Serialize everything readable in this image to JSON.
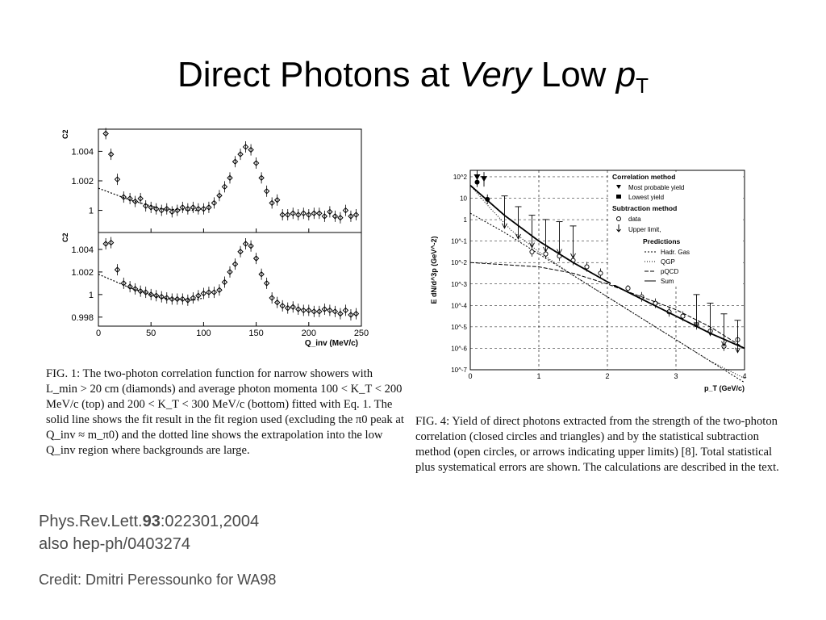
{
  "slide": {
    "title_part1": "Direct Photons at ",
    "title_italic": "Very",
    "title_part2": " Low ",
    "title_p": "p",
    "title_sub": "T"
  },
  "fig1": {
    "caption": "FIG. 1: The two-photon correlation function for narrow showers with L_min > 20 cm (diamonds) and average photon momenta 100 < K_T < 200 MeV/c (top) and 200 < K_T < 300 MeV/c (bottom) fitted with Eq. 1. The solid line shows the fit result in the fit region used (excluding the π0 peak at Q_inv ≈ m_π0) and the dotted line shows the extrapolation into the low Q_inv region where backgrounds are large."
  },
  "fig4": {
    "caption": "FIG. 4: Yield of direct photons extracted from the strength of the two-photon correlation (closed circles and triangles) and by the statistical subtraction method (open circles, or arrows indicating upper limits) [8]. Total statistical plus systematical errors are shown. The calculations are described in the text."
  },
  "reference": {
    "line1_a": "Phys.Rev.Lett.",
    "line1_b": "93",
    "line1_c": ":022301,2004",
    "line2": "also hep-ph/0403274"
  },
  "credit": "Credit: Dmitri Peressounko for WA98",
  "chart_data": [
    {
      "type": "scatter",
      "title": "",
      "xlabel": "Q_inv (MeV/c)",
      "x_ticks": [
        "0",
        "50",
        "100",
        "150",
        "200",
        "250"
      ],
      "xlim": [
        0,
        250
      ],
      "panels": [
        {
          "ylabel": "C2",
          "y_ticks": [
            "1.004",
            "1.002",
            "1"
          ],
          "ylim": [
            0.9985,
            1.0055
          ],
          "series": [
            {
              "x": [
                7,
                12,
                18,
                24,
                30,
                35,
                40,
                45,
                50,
                55,
                60,
                65,
                70,
                75,
                80,
                85,
                90,
                95,
                100,
                105,
                110,
                115,
                120,
                125,
                130,
                135,
                140,
                145,
                150,
                155,
                160,
                165,
                170,
                175,
                180,
                185,
                190,
                195,
                200,
                205,
                210,
                215,
                220,
                225,
                230,
                235,
                240,
                245
              ],
              "y": [
                1.0052,
                1.0038,
                1.0021,
                1.0009,
                1.0008,
                1.0006,
                1.0008,
                1.0003,
                1.0002,
                1.0001,
                1.0,
                1.0001,
                0.9999,
                1.0,
                1.0002,
                1.0001,
                1.0002,
                1.0001,
                1.0001,
                1.0002,
                1.0005,
                1.001,
                1.0016,
                1.0022,
                1.0033,
                1.0038,
                1.0043,
                1.0041,
                1.0032,
                1.0022,
                1.0013,
                1.0005,
                1.0007,
                0.9997,
                0.9997,
                0.9998,
                0.9997,
                0.9998,
                0.9997,
                0.9998,
                0.9998,
                0.9996,
                0.9999,
                0.9996,
                0.9995,
                1.0,
                0.9996,
                0.9997
              ]
            }
          ],
          "fit": {
            "x": [
              0,
              30,
              60,
              90,
              95
            ],
            "y": [
              1.0015,
              1.0007,
              1.0001,
              1.0,
              1.0
            ]
          }
        },
        {
          "ylabel": "C2",
          "y_ticks": [
            "1.004",
            "1.002",
            "1",
            "0.998"
          ],
          "ylim": [
            0.9972,
            1.0055
          ],
          "series": [
            {
              "x": [
                7,
                12,
                18,
                24,
                30,
                35,
                40,
                45,
                50,
                55,
                60,
                65,
                70,
                75,
                80,
                85,
                90,
                95,
                100,
                105,
                110,
                115,
                120,
                125,
                130,
                135,
                140,
                145,
                150,
                155,
                160,
                165,
                170,
                175,
                180,
                185,
                190,
                195,
                200,
                205,
                210,
                215,
                220,
                225,
                230,
                235,
                240,
                245
              ],
              "y": [
                1.0045,
                1.0046,
                1.0022,
                1.001,
                1.0007,
                1.0005,
                1.0003,
                1.0002,
                1.0,
                0.9999,
                0.9998,
                0.9997,
                0.9996,
                0.9996,
                0.9996,
                0.9995,
                0.9997,
                0.9999,
                1.0001,
                1.0002,
                1.0002,
                1.0004,
                1.0011,
                1.002,
                1.0027,
                1.0038,
                1.0045,
                1.0043,
                1.0032,
                1.0018,
                1.001,
                0.9997,
                0.9993,
                0.999,
                0.9988,
                0.9989,
                0.9987,
                0.9986,
                0.9986,
                0.9985,
                0.9985,
                0.9987,
                0.9986,
                0.9985,
                0.9983,
                0.9986,
                0.9982,
                0.9983
              ]
            }
          ],
          "fit": {
            "x": [
              0,
              30,
              60,
              90,
              100
            ],
            "y": [
              1.0018,
              1.0006,
              0.9997,
              0.9995,
              0.9997
            ]
          }
        }
      ]
    },
    {
      "type": "line",
      "title": "",
      "xlabel": "p_T (GeV/c)",
      "ylabel": "E dN/d^3p (GeV^-2)",
      "x_ticks": [
        "0",
        "1",
        "2",
        "3",
        "4"
      ],
      "y_ticks": [
        "10^2",
        "10",
        "1",
        "10^-1",
        "10^-2",
        "10^-3",
        "10^-4",
        "10^-5",
        "10^-6",
        "10^-7"
      ],
      "xlim": [
        0,
        4
      ],
      "ylim_log10": [
        -7,
        2.3
      ],
      "log_y": true,
      "legend": {
        "header1": "Correlation method",
        "item1": "Most probable yield",
        "item2": "Lowest yield",
        "header2": "Subtraction method",
        "item3": "data",
        "item4": "Upper limit,",
        "header3": "Predictions",
        "item5": "Hadr. Gas",
        "item6": "QGP",
        "item7": "pQCD",
        "item8": "Sum",
        "placement": "top-right"
      },
      "series": [
        {
          "name": "Most probable yield",
          "x": [
            0.1,
            0.2
          ],
          "y": [
            2.0,
            1.92
          ]
        },
        {
          "name": "Lowest yield",
          "x": [
            0.1,
            0.25
          ],
          "y": [
            1.75,
            0.95
          ]
        },
        {
          "name": "data",
          "x": [
            0.9,
            1.1,
            1.3,
            1.5,
            1.7,
            1.9,
            2.1,
            2.3,
            2.5,
            2.7,
            2.9,
            3.1,
            3.3,
            3.5,
            3.7,
            3.9
          ],
          "y": [
            -1.5,
            -1.6,
            -1.7,
            -1.9,
            -2.2,
            -2.5,
            -2.9,
            -3.2,
            -3.6,
            -3.9,
            -4.3,
            -4.5,
            -4.9,
            -5.2,
            -5.9,
            -5.6
          ]
        },
        {
          "name": "Upper limit,",
          "x": [
            0.5,
            0.7,
            0.9,
            1.1,
            1.3,
            1.5,
            3.3,
            3.5,
            3.7,
            3.9
          ],
          "y": [
            -0.4,
            -0.9,
            -1.3,
            -1.5,
            -1.6,
            -1.8,
            -5.0,
            -5.4,
            -5.9,
            -6.2
          ]
        },
        {
          "name": "Sum",
          "x": [
            0,
            0.5,
            1,
            1.5,
            2,
            2.5,
            3,
            3.5,
            4
          ],
          "y": [
            1.6,
            0.2,
            -1.0,
            -2.0,
            -2.9,
            -3.7,
            -4.5,
            -5.3,
            -6.0
          ]
        },
        {
          "name": "Hadr. Gas",
          "x": [
            0,
            0.5,
            1,
            1.5,
            2,
            2.5,
            3,
            3.5,
            4
          ],
          "y": [
            0.3,
            -0.6,
            -1.6,
            -2.6,
            -3.6,
            -4.6,
            -5.6,
            -6.6,
            -7.6
          ]
        },
        {
          "name": "QGP",
          "x": [
            0,
            0.3,
            0.6,
            1,
            1.5,
            2,
            2.5,
            3,
            3.5,
            4
          ],
          "y": [
            1.6,
            0.5,
            -0.5,
            -1.5,
            -2.6,
            -3.6,
            -4.6,
            -5.6,
            -6.6,
            -7.4
          ]
        },
        {
          "name": "pQCD",
          "x": [
            0,
            0.5,
            1,
            1.5,
            2,
            2.5,
            3,
            3.5,
            4
          ],
          "y": [
            -2.0,
            -2.1,
            -2.2,
            -2.5,
            -3.0,
            -3.6,
            -4.2,
            -5.0,
            -6.0
          ]
        }
      ]
    }
  ]
}
